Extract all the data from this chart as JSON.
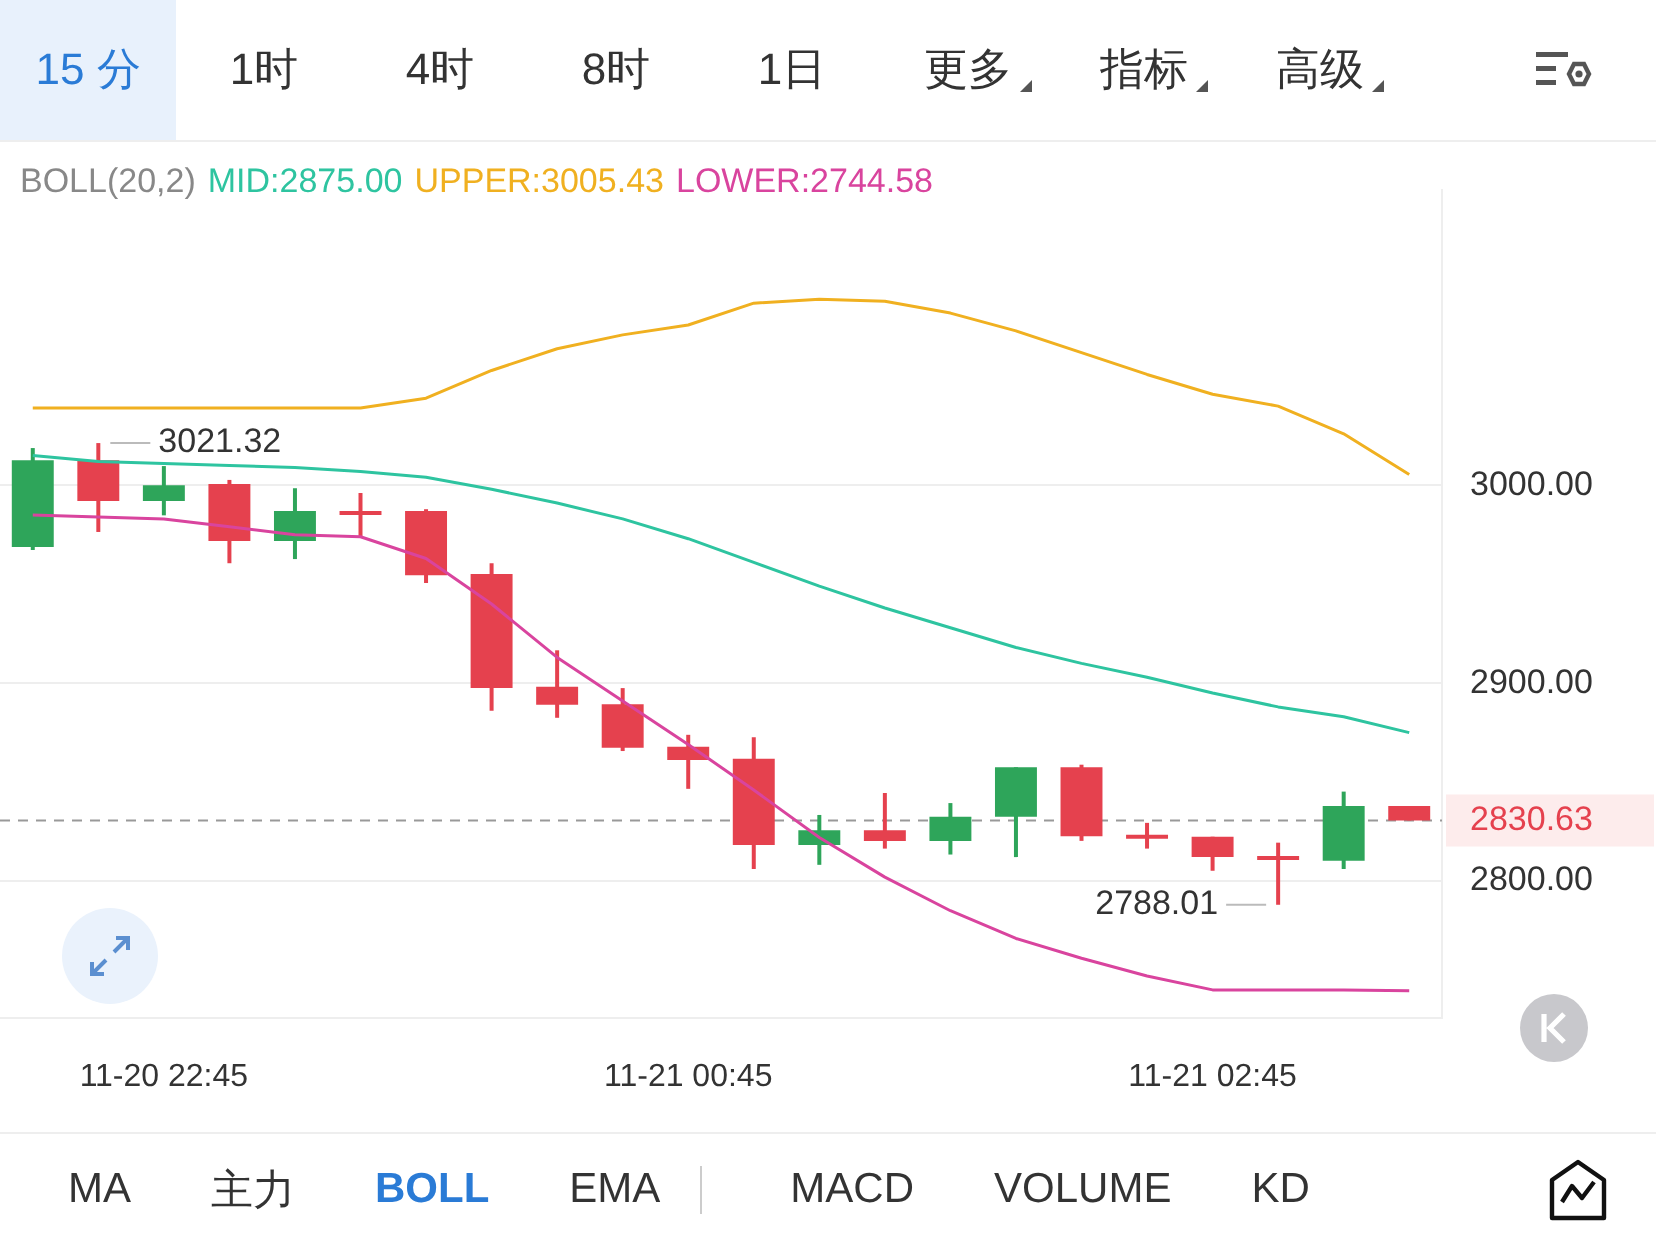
{
  "chart_data": {
    "type": "candlestick",
    "title": "BOLL(20,2)",
    "categories": [
      null,
      null,
      "11-20 22:45",
      null,
      null,
      null,
      null,
      null,
      null,
      null,
      "11-21 00:45",
      null,
      null,
      null,
      null,
      null,
      null,
      null,
      "11-21 02:45",
      null,
      null,
      null
    ],
    "ohlc": [
      [
        2968.8,
        3018.8,
        2967.3,
        3012.7
      ],
      [
        3012.7,
        3021.32,
        2976.4,
        2992.1
      ],
      [
        2992.1,
        3009.7,
        2984.8,
        3000.0
      ],
      [
        3000.6,
        3002.7,
        2960.6,
        2971.8
      ],
      [
        2971.8,
        2998.5,
        2962.7,
        2987.0
      ],
      [
        2987.0,
        2996.1,
        2973.4,
        2986.5
      ],
      [
        2987.0,
        2987.9,
        2950.6,
        2954.5
      ],
      [
        2955.2,
        2960.6,
        2886.1,
        2897.5
      ],
      [
        2898.2,
        2916.6,
        2882.5,
        2889.1
      ],
      [
        2889.4,
        2897.5,
        2865.7,
        2867.3
      ],
      [
        2867.9,
        2873.9,
        2846.6,
        2861.2
      ],
      [
        2861.8,
        2872.7,
        2806.1,
        2818.2
      ],
      [
        2818.2,
        2833.4,
        2808.2,
        2825.7
      ],
      [
        2825.7,
        2844.5,
        2816.4,
        2820.3
      ],
      [
        2820.3,
        2839.4,
        2813.4,
        2832.5
      ],
      [
        2832.5,
        2857.5,
        2812.1,
        2857.5
      ],
      [
        2857.5,
        2858.8,
        2820.3,
        2822.7
      ],
      [
        2823.4,
        2829.4,
        2816.4,
        2821.8
      ],
      [
        2822.4,
        2822.4,
        2805.2,
        2812.1
      ],
      [
        2812.7,
        2819.4,
        2788.01,
        2810.9
      ],
      [
        2810.3,
        2845.2,
        2806.1,
        2837.9
      ],
      [
        2837.9,
        2837.9,
        2830.63,
        2830.63
      ]
    ],
    "colors": [
      "#2ea55a",
      "#e5414e",
      "#2ea55a",
      "#e5414e",
      "#2ea55a",
      "#e5414e",
      "#e5414e",
      "#e5414e",
      "#e5414e",
      "#e5414e",
      "#e5414e",
      "#e5414e",
      "#2ea55a",
      "#e5414e",
      "#2ea55a",
      "#2ea55a",
      "#e5414e",
      "#e5414e",
      "#e5414e",
      "#e5414e",
      "#2ea55a",
      "#e5414e"
    ],
    "series": [
      {
        "type": "line",
        "name": "MID:2875.00",
        "color": "#2ec4a0",
        "values": [
          3015,
          3012,
          3011,
          3010,
          3009,
          3007,
          3004,
          2998,
          2991,
          2983,
          2973,
          2961,
          2949,
          2938,
          2928,
          2918,
          2910,
          2903,
          2895,
          2888,
          2883,
          2875.0
        ]
      },
      {
        "type": "line",
        "name": "UPPER:3005.43",
        "color": "#f0b020",
        "values": [
          3039,
          3039,
          3039,
          3039,
          3039,
          3039,
          3044,
          3058,
          3069,
          3076,
          3081,
          3092,
          3094,
          3093,
          3087,
          3078,
          3067,
          3056,
          3046,
          3040,
          3026,
          3005.43
        ]
      },
      {
        "type": "line",
        "name": "LOWER:2744.58",
        "color": "#d9449e",
        "values": [
          2985,
          2984,
          2983,
          2979,
          2975,
          2974,
          2963,
          2940,
          2913,
          2891,
          2869,
          2846,
          2822,
          2802,
          2785,
          2771,
          2761,
          2752,
          2745,
          2745,
          2745,
          2744.58
        ]
      }
    ],
    "ylim": [
      2731,
      3149
    ],
    "yticks": [
      {
        "value": 2800,
        "label": "2800.00"
      },
      {
        "value": 2900,
        "label": "2900.00"
      },
      {
        "value": 3000,
        "label": "3000.00"
      }
    ],
    "grid": "y",
    "legend": "top",
    "ref_lines": [
      {
        "axis": "y",
        "value": 2830.63,
        "label": "2830.63",
        "color": "#999999",
        "line_style": "dashed"
      }
    ],
    "annotations": [
      "3021.32",
      "2788.01",
      "15 分",
      "1时",
      "4时",
      "8时",
      "1日",
      "更多",
      "指标",
      "高级",
      "MA",
      "主力",
      "BOLL",
      "EMA",
      "MACD",
      "VOLUME",
      "KD"
    ]
  }
}
